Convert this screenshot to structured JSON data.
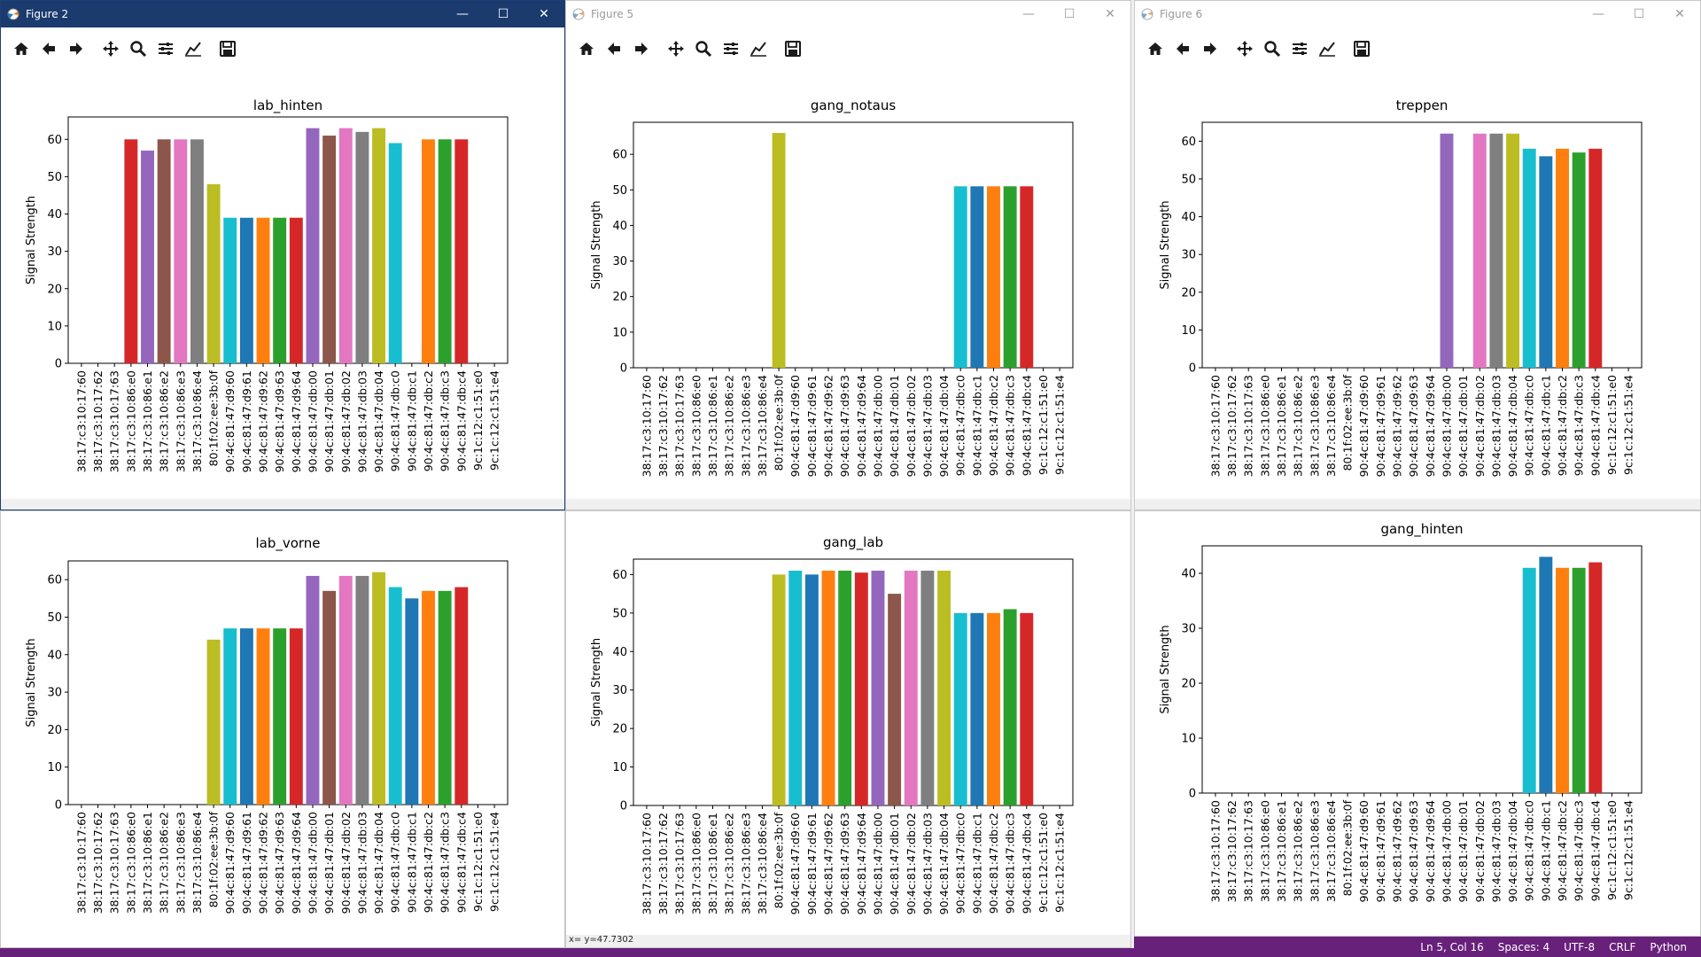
{
  "macs": [
    "38:17:c3:10:17:60",
    "38:17:c3:10:17:62",
    "38:17:c3:10:17:63",
    "38:17:c3:10:86:e0",
    "38:17:c3:10:86:e1",
    "38:17:c3:10:86:e2",
    "38:17:c3:10:86:e3",
    "38:17:c3:10:86:e4",
    "80:1f:02:ee:3b:0f",
    "90:4c:81:47:d9:60",
    "90:4c:81:47:d9:61",
    "90:4c:81:47:d9:62",
    "90:4c:81:47:d9:63",
    "90:4c:81:47:d9:64",
    "90:4c:81:47:db:00",
    "90:4c:81:47:db:01",
    "90:4c:81:47:db:02",
    "90:4c:81:47:db:03",
    "90:4c:81:47:db:04",
    "90:4c:81:47:db:c0",
    "90:4c:81:47:db:c1",
    "90:4c:81:47:db:c2",
    "90:4c:81:47:db:c3",
    "90:4c:81:47:db:c4",
    "9c:1c:12:c1:51:e0",
    "9c:1c:12:c1:51:e4"
  ],
  "palette": [
    "#1f77b4",
    "#ff7f0e",
    "#2ca02c",
    "#d62728",
    "#9467bd",
    "#8c564b",
    "#e377c2",
    "#7f7f7f",
    "#bcbd22",
    "#17becf"
  ],
  "windows": [
    {
      "title": "Figure 2",
      "state": "active"
    },
    {
      "title": "Figure 5",
      "state": "inactive"
    },
    {
      "title": "Figure 6",
      "state": "inactive"
    },
    {
      "title": "",
      "state": "hidden"
    },
    {
      "title": "",
      "state": "hidden"
    },
    {
      "title": "",
      "state": "hidden"
    }
  ],
  "toolbar_icons": [
    "home-icon",
    "back-icon",
    "forward-icon",
    "pan-icon",
    "zoom-icon",
    "configure-subplots-icon",
    "edit-axis-icon",
    "save-icon"
  ],
  "status_readout": "x= y=47.7302",
  "vscode_status": {
    "position": "Ln 5, Col 16",
    "spaces": "Spaces: 4",
    "encoding": "UTF-8",
    "eol": "CRLF",
    "language": "Python"
  },
  "chart_data": [
    {
      "type": "bar",
      "title": "lab_hinten",
      "ylabel": "Signal Strength",
      "xlabel": "",
      "ylim": [
        0,
        66
      ],
      "yticks": [
        0,
        10,
        20,
        30,
        40,
        50,
        60
      ],
      "values": [
        0,
        0,
        0,
        60,
        57,
        60,
        60,
        60,
        48,
        39,
        39,
        39,
        39,
        39,
        63,
        61,
        63,
        62,
        63,
        59,
        0,
        60,
        60,
        60,
        0,
        0
      ],
      "colors": [
        "#1f77b4",
        "#ff7f0e",
        "#2ca02c",
        "#d62728",
        "#9467bd",
        "#8c564b",
        "#e377c2",
        "#7f7f7f",
        "#bcbd22",
        "#17becf",
        "#1f77b4",
        "#ff7f0e",
        "#2ca02c",
        "#d62728",
        "#9467bd",
        "#8c564b",
        "#e377c2",
        "#7f7f7f",
        "#bcbd22",
        "#17becf",
        "#1f77b4",
        "#ff7f0e",
        "#2ca02c",
        "#d62728",
        "#9467bd",
        "#8c564b"
      ]
    },
    {
      "type": "bar",
      "title": "gang_notaus",
      "ylabel": "Signal Strength",
      "xlabel": "",
      "ylim": [
        0,
        69
      ],
      "yticks": [
        0,
        10,
        20,
        30,
        40,
        50,
        60
      ],
      "values": [
        0,
        0,
        0,
        0,
        0,
        0,
        0,
        0,
        66,
        0,
        0,
        0,
        0,
        0,
        0,
        0,
        0,
        0,
        0,
        51,
        51,
        51,
        51,
        51,
        0,
        0
      ],
      "colors": [
        "#1f77b4",
        "#ff7f0e",
        "#2ca02c",
        "#d62728",
        "#9467bd",
        "#8c564b",
        "#e377c2",
        "#7f7f7f",
        "#bcbd22",
        "#17becf",
        "#1f77b4",
        "#ff7f0e",
        "#2ca02c",
        "#d62728",
        "#9467bd",
        "#8c564b",
        "#e377c2",
        "#7f7f7f",
        "#bcbd22",
        "#17becf",
        "#1f77b4",
        "#ff7f0e",
        "#2ca02c",
        "#d62728",
        "#9467bd",
        "#8c564b"
      ]
    },
    {
      "type": "bar",
      "title": "treppen",
      "ylabel": "Signal Strength",
      "xlabel": "",
      "ylim": [
        0,
        65
      ],
      "yticks": [
        0,
        10,
        20,
        30,
        40,
        50,
        60
      ],
      "values": [
        0,
        0,
        0,
        0,
        0,
        0,
        0,
        0,
        0,
        0,
        0,
        0,
        0,
        0,
        62,
        0,
        62,
        62,
        62,
        58,
        56,
        58,
        57,
        58,
        0,
        0
      ],
      "colors": [
        "#1f77b4",
        "#ff7f0e",
        "#2ca02c",
        "#d62728",
        "#9467bd",
        "#8c564b",
        "#e377c2",
        "#7f7f7f",
        "#bcbd22",
        "#17becf",
        "#1f77b4",
        "#ff7f0e",
        "#2ca02c",
        "#d62728",
        "#9467bd",
        "#8c564b",
        "#e377c2",
        "#7f7f7f",
        "#bcbd22",
        "#17becf",
        "#1f77b4",
        "#ff7f0e",
        "#2ca02c",
        "#d62728",
        "#9467bd",
        "#8c564b"
      ]
    },
    {
      "type": "bar",
      "title": "lab_vorne",
      "ylabel": "Signal Strength",
      "xlabel": "",
      "ylim": [
        0,
        65
      ],
      "yticks": [
        0,
        10,
        20,
        30,
        40,
        50,
        60
      ],
      "values": [
        0,
        0,
        0,
        0,
        0,
        0,
        0,
        0,
        44,
        47,
        47,
        47,
        47,
        47,
        61,
        57,
        61,
        61,
        62,
        58,
        55,
        57,
        57,
        58,
        0,
        0
      ],
      "colors": [
        "#1f77b4",
        "#ff7f0e",
        "#2ca02c",
        "#d62728",
        "#9467bd",
        "#8c564b",
        "#e377c2",
        "#7f7f7f",
        "#bcbd22",
        "#17becf",
        "#1f77b4",
        "#ff7f0e",
        "#2ca02c",
        "#d62728",
        "#9467bd",
        "#8c564b",
        "#e377c2",
        "#7f7f7f",
        "#bcbd22",
        "#17becf",
        "#1f77b4",
        "#ff7f0e",
        "#2ca02c",
        "#d62728",
        "#9467bd",
        "#8c564b"
      ]
    },
    {
      "type": "bar",
      "title": "gang_lab",
      "ylabel": "Signal Strength",
      "xlabel": "",
      "ylim": [
        0,
        64
      ],
      "yticks": [
        0,
        10,
        20,
        30,
        40,
        50,
        60
      ],
      "values": [
        0,
        0,
        0,
        0,
        0,
        0,
        0,
        0,
        60,
        61,
        60,
        61,
        61,
        60.5,
        61,
        55,
        61,
        61,
        61,
        50,
        50,
        50,
        51,
        50,
        0,
        0
      ],
      "colors": [
        "#1f77b4",
        "#ff7f0e",
        "#2ca02c",
        "#d62728",
        "#9467bd",
        "#8c564b",
        "#e377c2",
        "#7f7f7f",
        "#bcbd22",
        "#17becf",
        "#1f77b4",
        "#ff7f0e",
        "#2ca02c",
        "#d62728",
        "#9467bd",
        "#8c564b",
        "#e377c2",
        "#7f7f7f",
        "#bcbd22",
        "#17becf",
        "#1f77b4",
        "#ff7f0e",
        "#2ca02c",
        "#d62728",
        "#9467bd",
        "#8c564b"
      ]
    },
    {
      "type": "bar",
      "title": "gang_hinten",
      "ylabel": "Signal Strength",
      "xlabel": "",
      "ylim": [
        0,
        45
      ],
      "yticks": [
        0,
        10,
        20,
        30,
        40
      ],
      "values": [
        0,
        0,
        0,
        0,
        0,
        0,
        0,
        0,
        0,
        0,
        0,
        0,
        0,
        0,
        0,
        0,
        0,
        0,
        0,
        41,
        43,
        41,
        41,
        42,
        0,
        0
      ],
      "colors": [
        "#1f77b4",
        "#ff7f0e",
        "#2ca02c",
        "#d62728",
        "#9467bd",
        "#8c564b",
        "#e377c2",
        "#7f7f7f",
        "#bcbd22",
        "#17becf",
        "#1f77b4",
        "#ff7f0e",
        "#2ca02c",
        "#d62728",
        "#9467bd",
        "#8c564b",
        "#e377c2",
        "#7f7f7f",
        "#bcbd22",
        "#17becf",
        "#1f77b4",
        "#ff7f0e",
        "#2ca02c",
        "#d62728",
        "#9467bd",
        "#8c564b"
      ]
    }
  ]
}
